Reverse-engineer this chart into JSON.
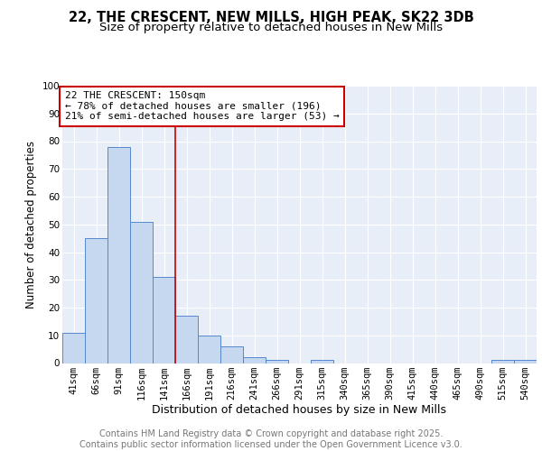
{
  "title": "22, THE CRESCENT, NEW MILLS, HIGH PEAK, SK22 3DB",
  "subtitle": "Size of property relative to detached houses in New Mills",
  "xlabel": "Distribution of detached houses by size in New Mills",
  "ylabel": "Number of detached properties",
  "background_color": "#e8eef8",
  "bar_color": "#c5d8f0",
  "bar_edge_color": "#5588cc",
  "categories": [
    "41sqm",
    "66sqm",
    "91sqm",
    "116sqm",
    "141sqm",
    "166sqm",
    "191sqm",
    "216sqm",
    "241sqm",
    "266sqm",
    "291sqm",
    "315sqm",
    "340sqm",
    "365sqm",
    "390sqm",
    "415sqm",
    "440sqm",
    "465sqm",
    "490sqm",
    "515sqm",
    "540sqm"
  ],
  "values": [
    11,
    45,
    78,
    51,
    31,
    17,
    10,
    6,
    2,
    1,
    0,
    1,
    0,
    0,
    0,
    0,
    0,
    0,
    0,
    1,
    1
  ],
  "ylim": [
    0,
    100
  ],
  "yticks": [
    0,
    10,
    20,
    30,
    40,
    50,
    60,
    70,
    80,
    90,
    100
  ],
  "vline_x": 4.5,
  "vline_color": "#cc0000",
  "annotation_text": "22 THE CRESCENT: 150sqm\n← 78% of detached houses are smaller (196)\n21% of semi-detached houses are larger (53) →",
  "annotation_box_color": "#cc0000",
  "footer_text": "Contains HM Land Registry data © Crown copyright and database right 2025.\nContains public sector information licensed under the Open Government Licence v3.0.",
  "title_fontsize": 10.5,
  "subtitle_fontsize": 9.5,
  "xlabel_fontsize": 9,
  "ylabel_fontsize": 8.5,
  "tick_fontsize": 7.5,
  "annot_fontsize": 8,
  "footer_fontsize": 7
}
